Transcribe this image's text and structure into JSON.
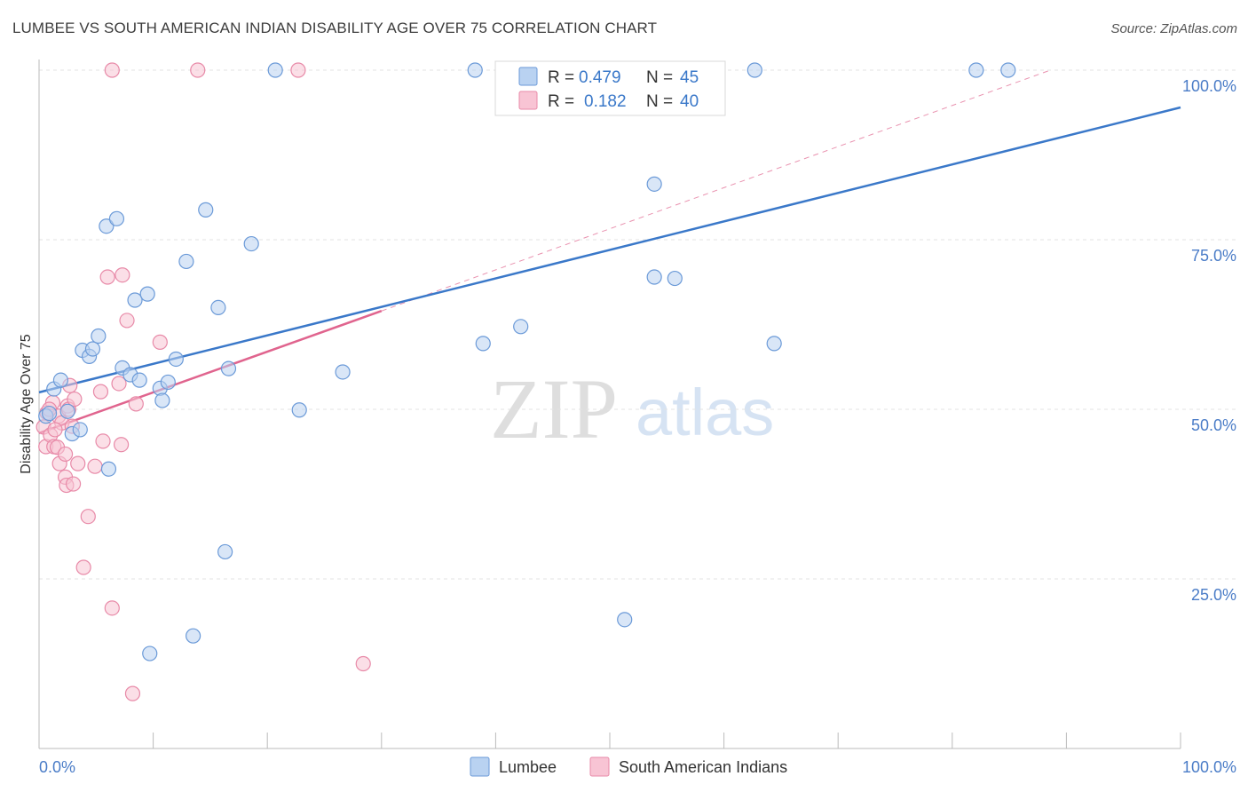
{
  "title": "LUMBEE VS SOUTH AMERICAN INDIAN DISABILITY AGE OVER 75 CORRELATION CHART",
  "source": "Source: ZipAtlas.com",
  "watermark": {
    "zip": "ZIP",
    "atlas": "atlas"
  },
  "legend": {
    "rows": [
      {
        "r_label": "R =",
        "r_value": "0.479",
        "n_label": "N =",
        "n_value": "45"
      },
      {
        "r_label": "R =",
        "r_value": "0.182",
        "n_label": "N =",
        "n_value": "40"
      }
    ]
  },
  "bottom_legend": [
    "Lumbee",
    "South American Indians"
  ],
  "colors": {
    "lumbee_fill": "#b9d2f1",
    "lumbee_stroke": "#6b9ad8",
    "lumbee_line": "#3a78c9",
    "sa_fill": "#f8c4d4",
    "sa_stroke": "#e88aa8",
    "sa_line": "#e0648e",
    "value_text": "#3a78c9",
    "grid": "#e3e3e3"
  },
  "chart_data": {
    "type": "scatter",
    "title": "LUMBEE VS SOUTH AMERICAN INDIAN DISABILITY AGE OVER 75 CORRELATION CHART",
    "xlabel": "",
    "ylabel": "Disability Age Over 75",
    "xlim": [
      0,
      100
    ],
    "ylim": [
      0,
      100
    ],
    "x_tick_labels": [
      "0.0%",
      "100.0%"
    ],
    "y_tick_labels": [
      "100.0%",
      "75.0%",
      "50.0%",
      "25.0%"
    ],
    "y_ticks": [
      100,
      75,
      50,
      25
    ],
    "grid": true,
    "legend_position": "top-center",
    "series": [
      {
        "name": "Lumbee",
        "r": 0.479,
        "n": 45,
        "trend": {
          "x": [
            0,
            100
          ],
          "y": [
            52.5,
            94.5
          ],
          "dashed_extension": false
        },
        "points": [
          [
            0.6,
            49.0
          ],
          [
            1.3,
            53.0
          ],
          [
            1.9,
            54.3
          ],
          [
            2.5,
            49.7
          ],
          [
            2.9,
            46.4
          ],
          [
            3.6,
            47.0
          ],
          [
            3.8,
            58.7
          ],
          [
            4.4,
            57.8
          ],
          [
            4.7,
            58.9
          ],
          [
            5.2,
            60.8
          ],
          [
            5.9,
            77.0
          ],
          [
            6.1,
            41.2
          ],
          [
            6.8,
            78.1
          ],
          [
            7.3,
            56.1
          ],
          [
            8.0,
            55.1
          ],
          [
            8.4,
            66.1
          ],
          [
            8.8,
            54.3
          ],
          [
            9.5,
            67.0
          ],
          [
            9.7,
            14.0
          ],
          [
            10.6,
            53.1
          ],
          [
            10.8,
            51.3
          ],
          [
            11.3,
            54.0
          ],
          [
            12.0,
            57.4
          ],
          [
            12.9,
            71.8
          ],
          [
            13.5,
            16.6
          ],
          [
            14.6,
            79.4
          ],
          [
            15.7,
            65.0
          ],
          [
            16.3,
            29.0
          ],
          [
            16.6,
            56.0
          ],
          [
            18.6,
            74.4
          ],
          [
            20.7,
            100.0
          ],
          [
            22.8,
            49.9
          ],
          [
            26.6,
            55.5
          ],
          [
            38.2,
            100.0
          ],
          [
            38.9,
            59.7
          ],
          [
            42.2,
            62.2
          ],
          [
            51.3,
            19.0
          ],
          [
            53.9,
            83.2
          ],
          [
            53.9,
            69.5
          ],
          [
            55.7,
            69.3
          ],
          [
            62.7,
            100.0
          ],
          [
            64.4,
            59.7
          ],
          [
            82.1,
            100.0
          ],
          [
            84.9,
            100.0
          ],
          [
            0.9,
            49.4
          ]
        ]
      },
      {
        "name": "South American Indians",
        "r": 0.182,
        "n": 40,
        "trend": {
          "x": [
            0,
            30
          ],
          "y": [
            46.5,
            64.5
          ],
          "dashed_to": [
            88.6,
            100.0
          ]
        },
        "points": [
          [
            0.4,
            47.4
          ],
          [
            0.6,
            44.5
          ],
          [
            0.7,
            49.5
          ],
          [
            1.0,
            46.2
          ],
          [
            1.2,
            51.0
          ],
          [
            1.3,
            44.5
          ],
          [
            1.6,
            44.4
          ],
          [
            1.7,
            49.0
          ],
          [
            1.8,
            42.0
          ],
          [
            2.0,
            48.0
          ],
          [
            2.3,
            40.0
          ],
          [
            2.3,
            43.4
          ],
          [
            2.4,
            38.8
          ],
          [
            2.5,
            50.5
          ],
          [
            2.6,
            50.0
          ],
          [
            2.7,
            53.5
          ],
          [
            2.9,
            47.5
          ],
          [
            3.0,
            39.0
          ],
          [
            3.1,
            51.5
          ],
          [
            3.4,
            42.0
          ],
          [
            3.9,
            26.7
          ],
          [
            4.3,
            34.2
          ],
          [
            4.9,
            41.6
          ],
          [
            5.4,
            52.6
          ],
          [
            5.6,
            45.3
          ],
          [
            6.0,
            69.5
          ],
          [
            6.4,
            20.7
          ],
          [
            7.0,
            53.8
          ],
          [
            7.2,
            44.8
          ],
          [
            7.3,
            69.8
          ],
          [
            7.7,
            63.1
          ],
          [
            8.2,
            8.1
          ],
          [
            8.5,
            50.8
          ],
          [
            10.6,
            59.9
          ],
          [
            6.4,
            100.0
          ],
          [
            13.9,
            100.0
          ],
          [
            22.7,
            100.0
          ],
          [
            28.4,
            12.5
          ],
          [
            0.9,
            50.0
          ],
          [
            1.4,
            47.0
          ]
        ]
      }
    ]
  }
}
